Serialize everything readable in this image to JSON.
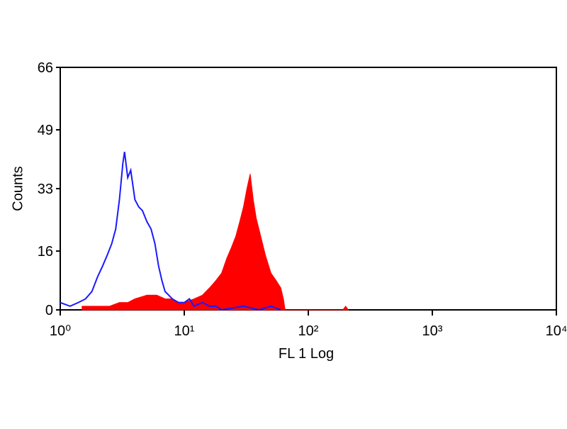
{
  "chart_data": {
    "type": "line",
    "xlabel": "FL 1 Log",
    "ylabel": "Counts",
    "xscale": "log",
    "xlim": [
      1,
      10000
    ],
    "xticks": [
      {
        "value": 1,
        "label": "10⁰"
      },
      {
        "value": 10,
        "label": "10¹"
      },
      {
        "value": 100,
        "label": "10²"
      },
      {
        "value": 1000,
        "label": "10³"
      },
      {
        "value": 10000,
        "label": "10⁴"
      }
    ],
    "ylim": [
      0,
      66
    ],
    "yticks": [
      0,
      16,
      33,
      49,
      66
    ],
    "series": [
      {
        "color": "#1a1aff",
        "filled": false,
        "x": [
          1.0,
          1.2,
          1.4,
          1.6,
          1.8,
          2.0,
          2.2,
          2.4,
          2.6,
          2.8,
          3.0,
          3.2,
          3.3,
          3.5,
          3.7,
          4.0,
          4.3,
          4.6,
          5.0,
          5.4,
          5.8,
          6.2,
          6.6,
          7.0,
          7.5,
          8,
          9,
          10,
          11,
          12,
          14,
          16,
          18,
          20,
          30,
          40,
          50,
          60
        ],
        "values": [
          2,
          1,
          2,
          3,
          5,
          9,
          12,
          15,
          18,
          22,
          30,
          40,
          43,
          36,
          38,
          30,
          28,
          27,
          24,
          22,
          18,
          12,
          8,
          5,
          4,
          3,
          2,
          2,
          3,
          1,
          2,
          1,
          1,
          0,
          1,
          0,
          1,
          0
        ]
      },
      {
        "color": "#ff0000",
        "filled": true,
        "x": [
          1.5,
          2,
          2.5,
          3,
          3.5,
          4,
          5,
          6,
          7,
          8,
          9,
          10,
          12,
          14,
          16,
          18,
          20,
          22,
          24,
          26,
          28,
          30,
          32,
          34,
          36,
          38,
          40,
          45,
          50,
          55,
          60,
          63,
          65,
          190,
          200,
          210
        ],
        "values": [
          1,
          1,
          1,
          2,
          2,
          3,
          4,
          4,
          3,
          3,
          2,
          2,
          3,
          4,
          6,
          8,
          10,
          14,
          17,
          20,
          24,
          28,
          33,
          37,
          30,
          25,
          22,
          15,
          10,
          8,
          6,
          3,
          0,
          0,
          1,
          0
        ]
      }
    ]
  }
}
